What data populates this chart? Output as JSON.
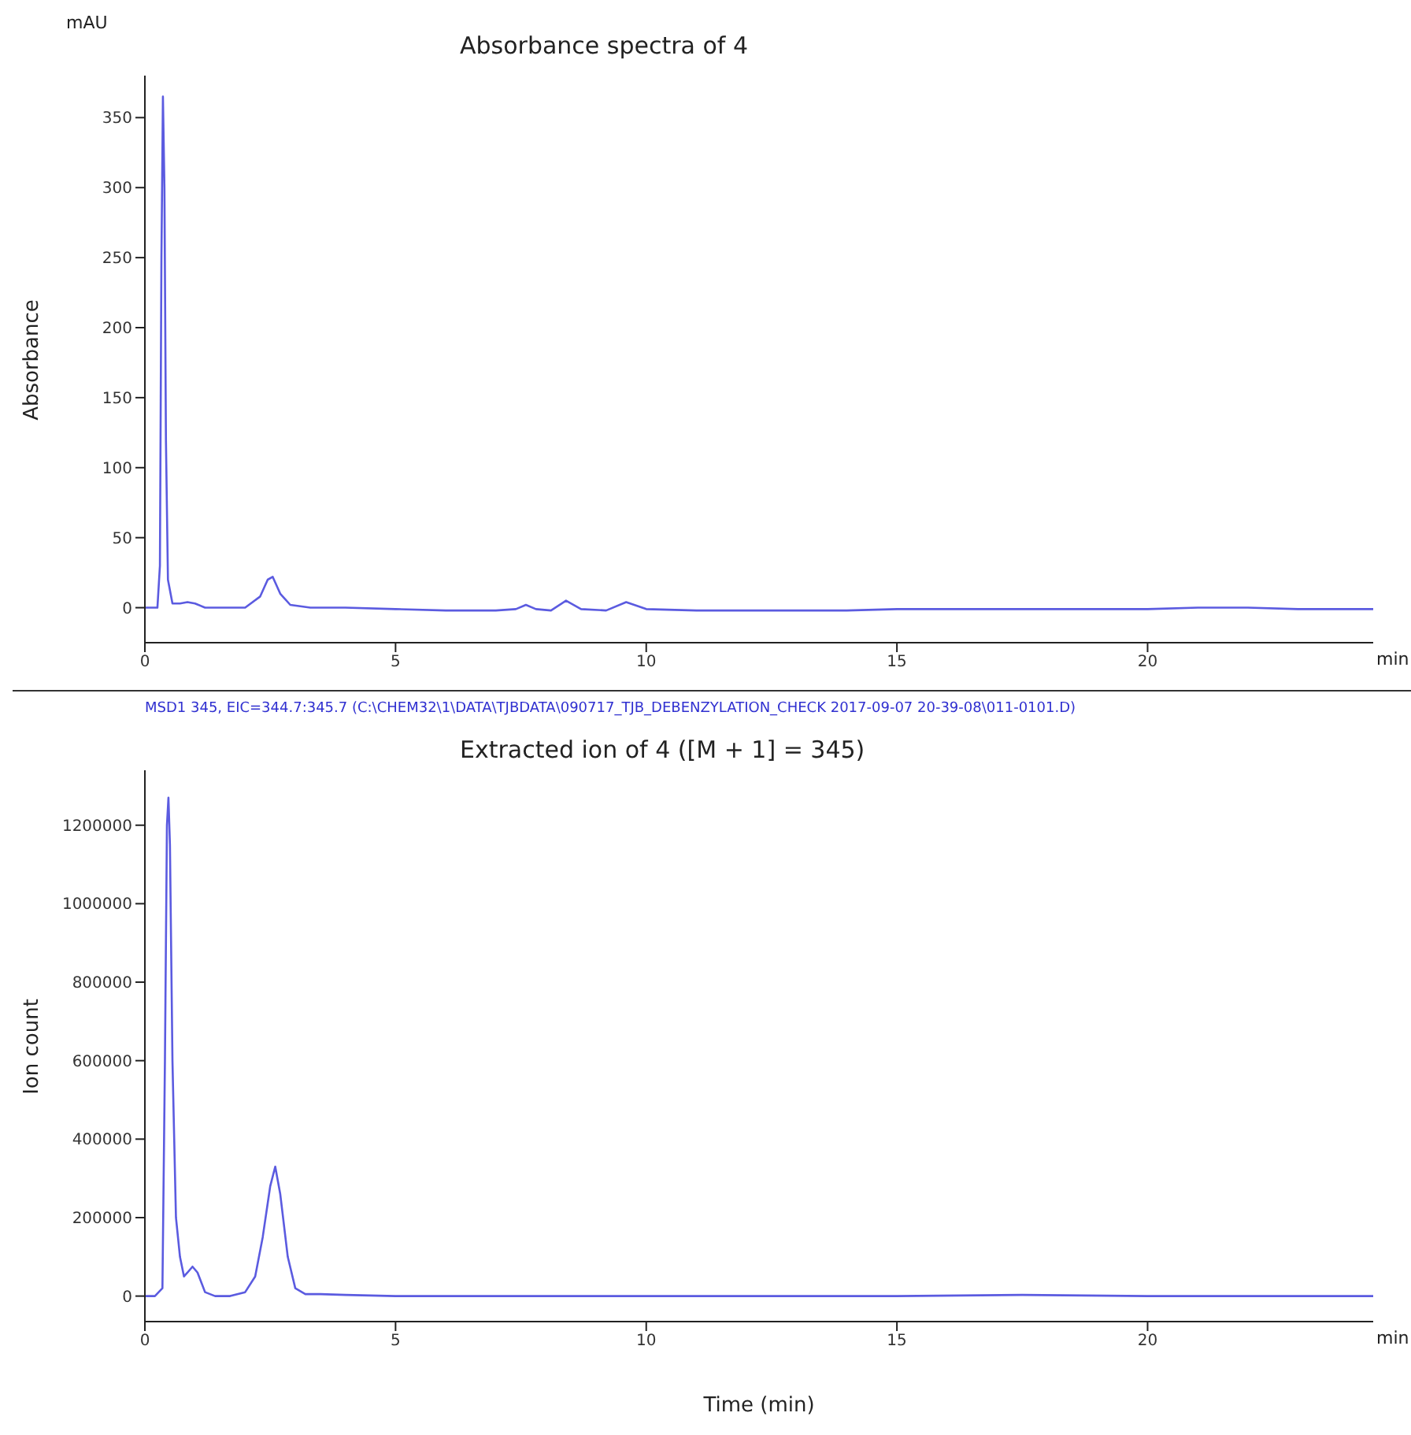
{
  "chart_data": [
    {
      "type": "line",
      "title": "Absorbance spectra of 4",
      "ylabel": "Absorbance",
      "annotations": [
        "mAU",
        "min"
      ],
      "xlim": [
        0,
        24.5
      ],
      "xticks": [
        0,
        5,
        10,
        15,
        20
      ],
      "ylim": [
        -25,
        380
      ],
      "yticks": [
        0,
        50,
        100,
        150,
        200,
        250,
        300,
        350
      ],
      "grid": false,
      "marker": "none",
      "line_style": "solid",
      "series": [
        {
          "color": "#5b5be0",
          "x": [
            0,
            0.25,
            0.3,
            0.33,
            0.36,
            0.39,
            0.42,
            0.46,
            0.55,
            0.7,
            0.85,
            1.0,
            1.2,
            1.6,
            2.0,
            2.3,
            2.45,
            2.55,
            2.7,
            2.9,
            3.3,
            4,
            5,
            6,
            7,
            7.4,
            7.6,
            7.8,
            8.1,
            8.4,
            8.7,
            9.2,
            9.6,
            10.0,
            11,
            12,
            13,
            14,
            15,
            17,
            19,
            20,
            21,
            22,
            23,
            24.5
          ],
          "values": [
            0,
            0,
            30,
            250,
            365,
            300,
            120,
            20,
            3,
            3,
            4,
            3,
            0,
            0,
            0,
            8,
            20,
            22,
            10,
            2,
            0,
            0,
            -1,
            -2,
            -2,
            -1,
            2,
            -1,
            -2,
            5,
            -1,
            -2,
            4,
            -1,
            -2,
            -2,
            -2,
            -2,
            -1,
            -1,
            -1,
            -1,
            0,
            0,
            -1,
            -1
          ]
        }
      ]
    },
    {
      "type": "line",
      "title": "Extracted ion of 4 ([M + 1] = 345)",
      "xlabel": "Time (min)",
      "ylabel": "Ion count",
      "annotations": [
        "MSD1 345, EIC=344.7:345.7 (C:\\CHEM32\\1\\DATA\\TJBDATA\\090717_TJB_DEBENZYLATION_CHECK 2017-09-07 20-39-08\\011-0101.D)",
        "min"
      ],
      "xlim": [
        0,
        24.5
      ],
      "xticks": [
        0,
        5,
        10,
        15,
        20
      ],
      "ylim": [
        -65000,
        1340000
      ],
      "yticks": [
        0,
        200000,
        400000,
        600000,
        800000,
        1000000,
        1200000
      ],
      "grid": false,
      "marker": "none",
      "line_style": "solid",
      "series": [
        {
          "color": "#5b5be0",
          "x": [
            0,
            0.2,
            0.35,
            0.4,
            0.44,
            0.47,
            0.5,
            0.55,
            0.62,
            0.7,
            0.78,
            0.85,
            0.95,
            1.05,
            1.2,
            1.4,
            1.7,
            2.0,
            2.2,
            2.35,
            2.5,
            2.6,
            2.7,
            2.85,
            3.0,
            3.2,
            3.5,
            4,
            5,
            7,
            10,
            15,
            17.5,
            20,
            24.5
          ],
          "values": [
            0,
            0,
            20000,
            600000,
            1200000,
            1270000,
            1150000,
            600000,
            200000,
            100000,
            50000,
            60000,
            75000,
            60000,
            10000,
            0,
            0,
            10000,
            50000,
            150000,
            280000,
            330000,
            260000,
            100000,
            20000,
            5000,
            5000,
            3000,
            0,
            0,
            0,
            0,
            3000,
            0,
            0
          ]
        }
      ]
    }
  ]
}
